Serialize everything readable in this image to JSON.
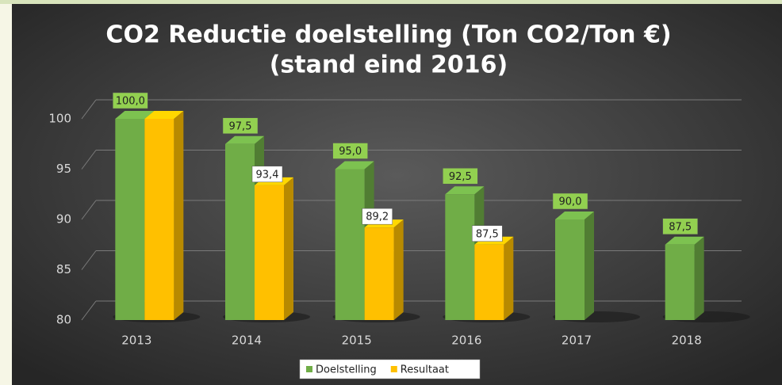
{
  "chart_data": {
    "type": "bar3d",
    "title": "CO2 Reductie doelstelling (Ton CO2/Ton €)",
    "subtitle": "(stand eind 2016)",
    "categories": [
      "2013",
      "2014",
      "2015",
      "2016",
      "2017",
      "2018"
    ],
    "series": [
      {
        "name": "Doelstelling",
        "color": "#70ad47",
        "values": [
          100,
          97.5,
          95,
          92.5,
          90,
          87.5
        ],
        "value_labels": [
          "100,0",
          "97,5",
          "95,0",
          "92,5",
          "90,0",
          "87,5"
        ]
      },
      {
        "name": "Resultaat",
        "color": "#ffc000",
        "values": [
          100,
          93.4,
          89.2,
          87.5,
          null,
          null
        ],
        "value_labels": [
          null,
          "93,4",
          "89,2",
          "87,5",
          null,
          null
        ]
      }
    ],
    "ylim": [
      80,
      100
    ],
    "yticks": [
      80,
      85,
      90,
      95,
      100
    ],
    "grid": true,
    "legend": "bottom"
  }
}
